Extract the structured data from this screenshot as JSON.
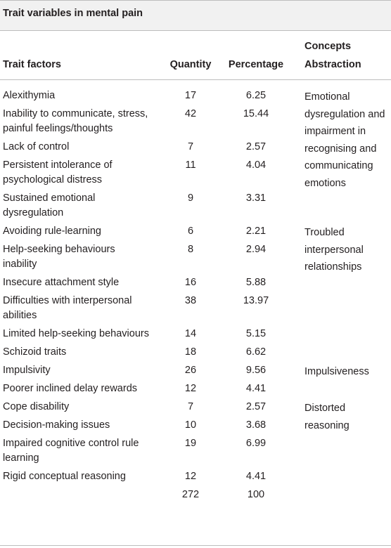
{
  "table": {
    "title": "Trait variables in mental pain",
    "headers": {
      "trait": "Trait factors",
      "quantity": "Quantity",
      "percentage": "Percentage",
      "concepts_line1": "Concepts",
      "concepts_line2": "Abstraction"
    },
    "rows": [
      {
        "trait": [
          "Alexithymia"
        ],
        "quantity": "17",
        "percentage": "6.25"
      },
      {
        "trait": [
          "Inability to communicate, stress,",
          "painful feelings/thoughts"
        ],
        "quantity": "42",
        "percentage": "15.44"
      },
      {
        "trait": [
          "Lack of control"
        ],
        "quantity": "7",
        "percentage": "2.57"
      },
      {
        "trait": [
          "Persistent intolerance of",
          "psychological distress"
        ],
        "quantity": "11",
        "percentage": "4.04"
      },
      {
        "trait": [
          "Sustained emotional",
          "dysregulation"
        ],
        "quantity": "9",
        "percentage": "3.31"
      },
      {
        "trait": [
          "Avoiding rule-learning"
        ],
        "quantity": "6",
        "percentage": "2.21"
      },
      {
        "trait": [
          "Help-seeking behaviours",
          "inability"
        ],
        "quantity": "8",
        "percentage": "2.94"
      },
      {
        "trait": [
          "Insecure attachment style"
        ],
        "quantity": "16",
        "percentage": "5.88"
      },
      {
        "trait": [
          "Difficulties with interpersonal",
          "abilities"
        ],
        "quantity": "38",
        "percentage": "13.97"
      },
      {
        "trait": [
          "Limited help-seeking behaviours"
        ],
        "quantity": "14",
        "percentage": "5.15"
      },
      {
        "trait": [
          "Schizoid traits"
        ],
        "quantity": "18",
        "percentage": "6.62"
      },
      {
        "trait": [
          "Impulsivity"
        ],
        "quantity": "26",
        "percentage": "9.56"
      },
      {
        "trait": [
          "Poorer inclined delay rewards"
        ],
        "quantity": "12",
        "percentage": "4.41"
      },
      {
        "trait": [
          "Cope disability"
        ],
        "quantity": "7",
        "percentage": "2.57"
      },
      {
        "trait": [
          "Decision-making issues"
        ],
        "quantity": "10",
        "percentage": "3.68"
      },
      {
        "trait": [
          "Impaired cognitive control rule",
          "learning"
        ],
        "quantity": "19",
        "percentage": "6.99"
      },
      {
        "trait": [
          "Rigid conceptual reasoning"
        ],
        "quantity": "12",
        "percentage": "4.41"
      },
      {
        "trait": [
          ""
        ],
        "quantity": "272",
        "percentage": "100"
      }
    ],
    "concepts": [
      {
        "row": 0,
        "lines": [
          "Emotional",
          "dysregulation and",
          "impairment in",
          "recognising and",
          "communicating",
          "emotions"
        ]
      },
      {
        "row": 5,
        "lines": [
          "Troubled",
          "interpersonal",
          "relationships"
        ]
      },
      {
        "row": 11,
        "lines": [
          "Impulsiveness"
        ]
      },
      {
        "row": 13,
        "lines": [
          "Distorted",
          "reasoning"
        ]
      }
    ]
  }
}
